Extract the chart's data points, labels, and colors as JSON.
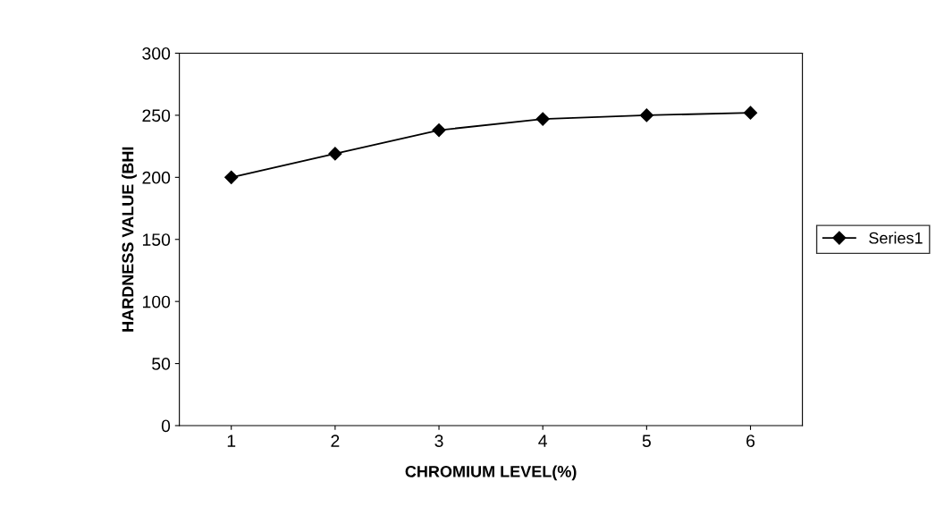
{
  "chart_data": {
    "type": "line",
    "xlabel": "CHROMIUM LEVEL(%)",
    "ylabel": "HARDNESS VALUE (BHI",
    "categories": [
      "1",
      "2",
      "3",
      "4",
      "5",
      "6"
    ],
    "series": [
      {
        "name": "Series1",
        "color": "#000000",
        "values": [
          200,
          219,
          238,
          247,
          250,
          252
        ]
      }
    ],
    "ylim": [
      0,
      300
    ],
    "yticks": [
      0,
      50,
      100,
      150,
      200,
      250,
      300
    ],
    "marker": "diamond",
    "line_style": "solid",
    "legend": "right",
    "grid": false
  }
}
